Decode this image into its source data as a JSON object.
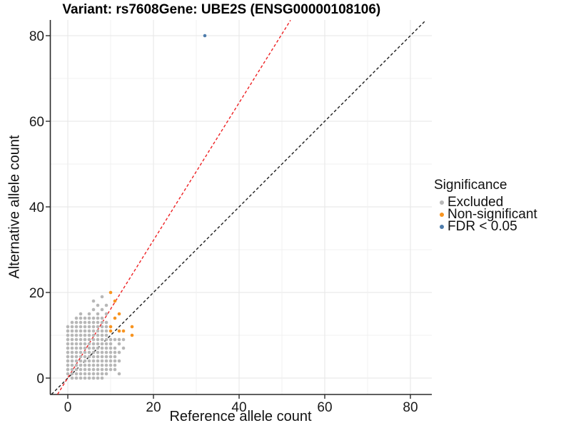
{
  "chart_data": {
    "type": "scatter",
    "title_left": "Variant: rs7608",
    "title_right": "Gene: UBE2S (ENSG00000108106)",
    "xlabel": "Reference allele count",
    "ylabel": "Alternative allele count",
    "xticks": [
      0,
      20,
      40,
      60,
      80
    ],
    "yticks": [
      0,
      20,
      40,
      60,
      80
    ],
    "grid_step": 10,
    "xlim": [
      -4.2,
      85
    ],
    "ylim": [
      -3.8,
      83.7
    ],
    "colors": {
      "excluded": "#b7b7b7",
      "non_significant": "#f79420",
      "fdr": "#4e7cab",
      "identity_line": "#1c1c1c",
      "ratio_line": "#ee2123",
      "grid_major": "#e6e6e6",
      "grid_minor": "#f0f0f0",
      "axis": "#2a2a2a"
    },
    "legend": {
      "title": "Significance",
      "entries": [
        {
          "label": "Excluded",
          "color": "#b7b7b7"
        },
        {
          "label": "Non-significant",
          "color": "#f79420"
        },
        {
          "label": "FDR < 0.05",
          "color": "#4e7cab"
        }
      ]
    },
    "lines": [
      {
        "name": "identity-line",
        "color": "#1c1c1c",
        "dash": "4 3",
        "from": [
          -3.8,
          -3.8
        ],
        "to": [
          83.6,
          83.6
        ]
      },
      {
        "name": "expected-ratio-line",
        "color": "#ee2123",
        "dash": "4 3",
        "from": [
          -2.4,
          -3.8
        ],
        "to": [
          52,
          83.6
        ]
      }
    ],
    "series": [
      {
        "name": "Excluded",
        "color": "#b7b7b7",
        "points": [
          [
            0,
            1
          ],
          [
            0,
            2
          ],
          [
            0,
            3
          ],
          [
            0,
            4
          ],
          [
            0,
            5
          ],
          [
            0,
            6
          ],
          [
            0,
            7
          ],
          [
            0,
            8
          ],
          [
            0,
            9
          ],
          [
            0,
            10
          ],
          [
            0,
            11
          ],
          [
            0,
            12
          ],
          [
            1,
            0
          ],
          [
            1,
            1
          ],
          [
            1,
            2
          ],
          [
            1,
            3
          ],
          [
            1,
            4
          ],
          [
            1,
            5
          ],
          [
            1,
            6
          ],
          [
            1,
            7
          ],
          [
            1,
            8
          ],
          [
            1,
            9
          ],
          [
            1,
            10
          ],
          [
            1,
            11
          ],
          [
            1,
            12
          ],
          [
            1,
            13
          ],
          [
            2,
            0
          ],
          [
            2,
            1
          ],
          [
            2,
            2
          ],
          [
            2,
            3
          ],
          [
            2,
            4
          ],
          [
            2,
            5
          ],
          [
            2,
            6
          ],
          [
            2,
            7
          ],
          [
            2,
            8
          ],
          [
            2,
            9
          ],
          [
            2,
            10
          ],
          [
            2,
            11
          ],
          [
            2,
            12
          ],
          [
            2,
            13
          ],
          [
            2,
            14
          ],
          [
            3,
            0
          ],
          [
            3,
            1
          ],
          [
            3,
            2
          ],
          [
            3,
            3
          ],
          [
            3,
            4
          ],
          [
            3,
            5
          ],
          [
            3,
            6
          ],
          [
            3,
            7
          ],
          [
            3,
            8
          ],
          [
            3,
            9
          ],
          [
            3,
            10
          ],
          [
            3,
            11
          ],
          [
            3,
            12
          ],
          [
            3,
            13
          ],
          [
            3,
            14
          ],
          [
            3,
            15
          ],
          [
            4,
            0
          ],
          [
            4,
            1
          ],
          [
            4,
            2
          ],
          [
            4,
            3
          ],
          [
            4,
            4
          ],
          [
            4,
            5
          ],
          [
            4,
            6
          ],
          [
            4,
            7
          ],
          [
            4,
            8
          ],
          [
            4,
            9
          ],
          [
            4,
            10
          ],
          [
            4,
            11
          ],
          [
            4,
            12
          ],
          [
            4,
            13
          ],
          [
            4,
            14
          ],
          [
            5,
            0
          ],
          [
            5,
            1
          ],
          [
            5,
            2
          ],
          [
            5,
            3
          ],
          [
            5,
            4
          ],
          [
            5,
            5
          ],
          [
            5,
            6
          ],
          [
            5,
            7
          ],
          [
            5,
            8
          ],
          [
            5,
            9
          ],
          [
            5,
            10
          ],
          [
            5,
            11
          ],
          [
            5,
            12
          ],
          [
            5,
            13
          ],
          [
            5,
            14
          ],
          [
            5,
            15
          ],
          [
            6,
            0
          ],
          [
            6,
            1
          ],
          [
            6,
            2
          ],
          [
            6,
            3
          ],
          [
            6,
            4
          ],
          [
            6,
            5
          ],
          [
            6,
            6
          ],
          [
            6,
            7
          ],
          [
            6,
            8
          ],
          [
            6,
            9
          ],
          [
            6,
            10
          ],
          [
            6,
            11
          ],
          [
            6,
            12
          ],
          [
            6,
            13
          ],
          [
            6,
            14
          ],
          [
            6,
            16
          ],
          [
            6,
            18
          ],
          [
            7,
            0
          ],
          [
            7,
            1
          ],
          [
            7,
            2
          ],
          [
            7,
            3
          ],
          [
            7,
            4
          ],
          [
            7,
            5
          ],
          [
            7,
            6
          ],
          [
            7,
            7
          ],
          [
            7,
            8
          ],
          [
            7,
            9
          ],
          [
            7,
            10
          ],
          [
            7,
            11
          ],
          [
            7,
            12
          ],
          [
            7,
            13
          ],
          [
            7,
            14
          ],
          [
            7,
            15
          ],
          [
            7,
            17
          ],
          [
            8,
            0
          ],
          [
            8,
            1
          ],
          [
            8,
            2
          ],
          [
            8,
            3
          ],
          [
            8,
            4
          ],
          [
            8,
            5
          ],
          [
            8,
            6
          ],
          [
            8,
            7
          ],
          [
            8,
            8
          ],
          [
            8,
            9
          ],
          [
            8,
            10
          ],
          [
            8,
            11
          ],
          [
            8,
            12
          ],
          [
            8,
            13
          ],
          [
            8,
            14
          ],
          [
            8,
            16
          ],
          [
            8,
            19
          ],
          [
            9,
            1
          ],
          [
            9,
            2
          ],
          [
            9,
            3
          ],
          [
            9,
            4
          ],
          [
            9,
            5
          ],
          [
            9,
            6
          ],
          [
            9,
            7
          ],
          [
            9,
            8
          ],
          [
            9,
            9
          ],
          [
            9,
            10
          ],
          [
            9,
            11
          ],
          [
            9,
            12
          ],
          [
            9,
            13
          ],
          [
            9,
            15
          ],
          [
            9,
            17
          ],
          [
            10,
            2
          ],
          [
            10,
            3
          ],
          [
            10,
            4
          ],
          [
            10,
            5
          ],
          [
            10,
            6
          ],
          [
            10,
            7
          ],
          [
            10,
            8
          ],
          [
            10,
            9
          ],
          [
            11,
            2
          ],
          [
            11,
            3
          ],
          [
            11,
            4
          ],
          [
            11,
            5
          ],
          [
            11,
            6
          ],
          [
            11,
            7
          ],
          [
            11,
            9
          ],
          [
            12,
            1
          ],
          [
            12,
            4
          ],
          [
            12,
            6
          ],
          [
            12,
            8
          ],
          [
            12,
            9
          ],
          [
            13,
            7
          ],
          [
            13,
            9
          ]
        ]
      },
      {
        "name": "Non-significant",
        "color": "#f79420",
        "points": [
          [
            10,
            20
          ],
          [
            11,
            18
          ],
          [
            12,
            15
          ],
          [
            11,
            14
          ],
          [
            10,
            12
          ],
          [
            10,
            11
          ],
          [
            12,
            11
          ],
          [
            13,
            11
          ],
          [
            15,
            12
          ],
          [
            15,
            10
          ]
        ]
      },
      {
        "name": "FDR < 0.05",
        "color": "#4e7cab",
        "points": [
          [
            32,
            80
          ]
        ]
      }
    ]
  }
}
